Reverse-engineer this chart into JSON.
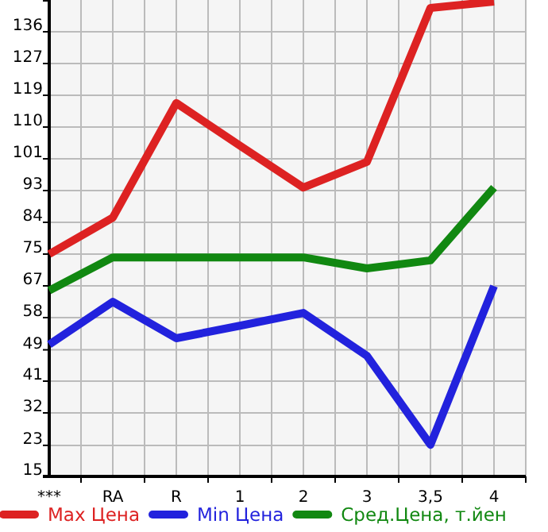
{
  "chart_data": {
    "type": "line",
    "categories": [
      "***",
      "RA",
      "R",
      "1",
      "2",
      "3",
      "3,5",
      "4"
    ],
    "series": [
      {
        "name": "Max Цена",
        "color": "#dd2222",
        "values": [
          75.5,
          85.4,
          116.6,
          105,
          93.6,
          100.6,
          142.5,
          144.2
        ]
      },
      {
        "name": "Min Цена",
        "color": "#2222dd",
        "values": [
          50.9,
          62.5,
          52.6,
          56,
          59.5,
          47.8,
          23.6,
          66.8
        ]
      },
      {
        "name": "Сред.Цена, т.йен",
        "color": "#118811",
        "values": [
          65.6,
          74.6,
          74.6,
          74.6,
          74.6,
          71.6,
          73.8,
          93.6
        ]
      }
    ],
    "ylim": [
      15,
      144.64
    ],
    "yticks": [
      15,
      {
        "value": 23.45,
        "label": "23"
      },
      {
        "value": 32.29,
        "label": "32"
      },
      {
        "value": 40.93,
        "label": "41"
      },
      {
        "value": 49.45,
        "label": "49"
      },
      {
        "value": 58.21,
        "label": "58"
      },
      {
        "value": 66.86,
        "label": "67"
      },
      {
        "value": 75.5,
        "label": "75"
      },
      {
        "value": 84.14,
        "label": "84"
      },
      {
        "value": 92.79,
        "label": "93"
      },
      {
        "value": 101.43,
        "label": "101"
      },
      {
        "value": 110.07,
        "label": "110"
      },
      {
        "value": 118.71,
        "label": "119"
      },
      {
        "value": 127.36,
        "label": "127"
      },
      136
    ],
    "grid": true,
    "legend": "bottom",
    "marker": "none",
    "line_style": "solid"
  }
}
